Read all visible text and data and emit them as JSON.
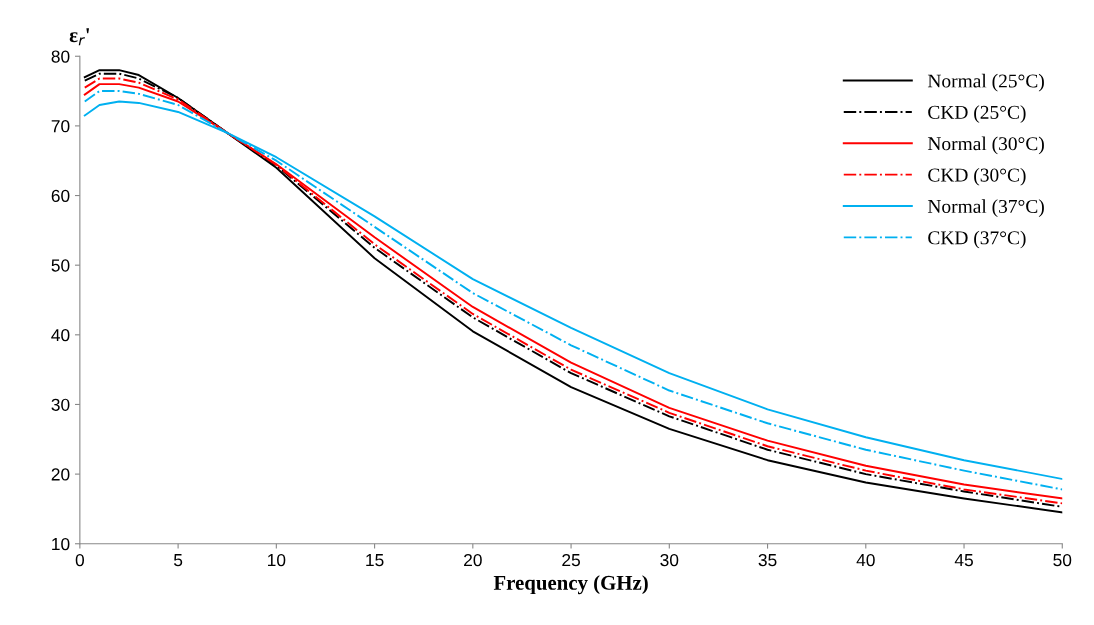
{
  "chart_data": {
    "type": "line",
    "xlabel": "Frequency (GHz)",
    "ylabel": "ε$_{r}$'",
    "x": [
      0.25,
      1,
      2,
      3,
      5,
      7.5,
      10,
      15,
      20,
      25,
      30,
      35,
      40,
      45,
      50
    ],
    "xlim": [
      0,
      50
    ],
    "xticks": [
      0,
      5,
      10,
      15,
      20,
      25,
      30,
      35,
      40,
      45,
      50
    ],
    "ylim": [
      10,
      80
    ],
    "yticks": [
      10,
      20,
      30,
      40,
      50,
      60,
      70,
      80
    ],
    "grid": false,
    "legend": "top right",
    "marker": "none",
    "series": [
      {
        "name": "Normal (25°C)",
        "color": "#000000",
        "line_style": "solid",
        "values": [
          77,
          78,
          78,
          77.3,
          74,
          69,
          64,
          51,
          40.5,
          32.5,
          26.5,
          22,
          18.8,
          16.5,
          14.5
        ]
      },
      {
        "name": "CKD (25°C)",
        "color": "#000000",
        "line_style": "dashdot",
        "values": [
          76.5,
          77.5,
          77.5,
          76.8,
          74,
          69,
          64.3,
          52.5,
          42.5,
          34.5,
          28.3,
          23.5,
          20,
          17.5,
          15.3
        ]
      },
      {
        "name": "Normal (30°C)",
        "color": "#ff0000",
        "line_style": "solid",
        "values": [
          74.5,
          76,
          76,
          75.5,
          73.5,
          69,
          64.5,
          54,
          44,
          36,
          29.5,
          24.8,
          21.2,
          18.5,
          16.5
        ]
      },
      {
        "name": "CKD (30°C)",
        "color": "#ff0000",
        "line_style": "dashdot",
        "values": [
          75.5,
          76.8,
          76.8,
          76.2,
          73.8,
          69,
          64.4,
          53,
          43,
          35,
          28.8,
          24,
          20.5,
          17.8,
          15.8
        ]
      },
      {
        "name": "Normal (37°C)",
        "color": "#00b0f0",
        "line_style": "solid",
        "values": [
          71.5,
          73,
          73.5,
          73.3,
          72,
          69,
          65.5,
          57,
          48,
          41,
          34.5,
          29.3,
          25.3,
          22,
          19.3
        ]
      },
      {
        "name": "CKD (37°C)",
        "color": "#00b0f0",
        "line_style": "dashdot",
        "values": [
          73.5,
          75,
          75,
          74.6,
          73,
          69,
          65,
          55.5,
          46,
          38.5,
          32,
          27.3,
          23.5,
          20.5,
          17.8
        ]
      }
    ]
  }
}
